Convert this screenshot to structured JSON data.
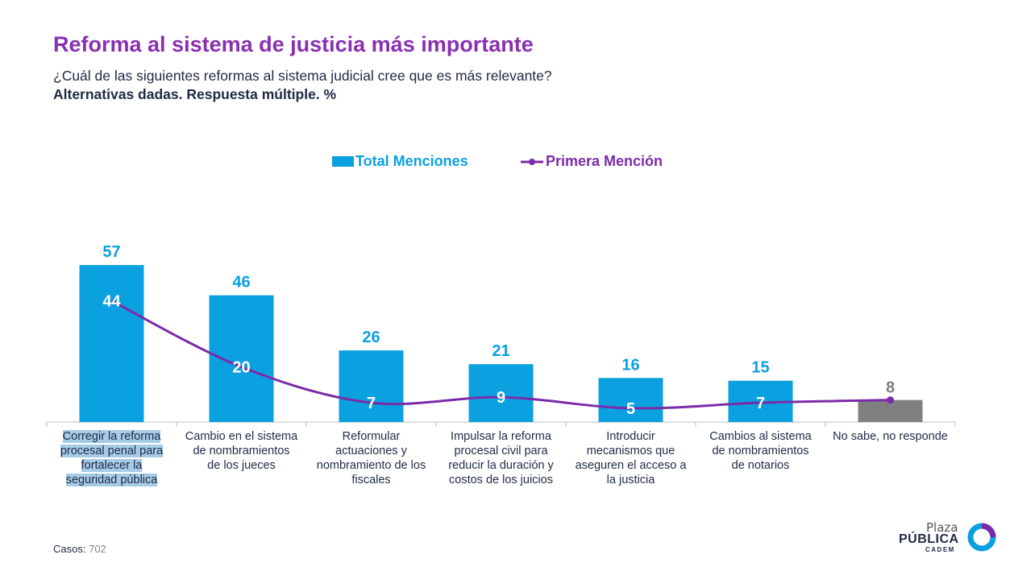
{
  "header": {
    "title": "Reforma al sistema de justicia más importante",
    "subtitle": "¿Cuál de las siguientes reformas al sistema judicial cree que es más relevante?",
    "note": "Alternativas dadas. Respuesta múltiple. %"
  },
  "legend": {
    "bar_label": "Total Menciones",
    "line_label": "Primera Mención"
  },
  "colors": {
    "bar": "#0ba0e0",
    "bar_na": "#808080",
    "line": "#7b2ba8",
    "title": "#8a2fb0",
    "highlight": "#a6cbe6"
  },
  "chart_data": {
    "type": "bar",
    "categories": [
      "Corregir la reforma procesal penal para fortalecer la seguridad pública",
      "Cambio en el sistema de nombramientos de los jueces",
      "Reformular actuaciones y nombramiento de los fiscales",
      "Impulsar la reforma procesal civil para reducir la duración y costos de los juicios",
      "Introducir mecanismos que aseguren el acceso a la justicia",
      "Cambios al sistema de nombramientos de notarios",
      "No sabe, no responde"
    ],
    "series": [
      {
        "name": "Total Menciones",
        "type": "bar",
        "values": [
          57,
          46,
          26,
          21,
          16,
          15,
          8
        ]
      },
      {
        "name": "Primera Mención",
        "type": "line",
        "values": [
          44,
          20,
          7,
          9,
          5,
          7,
          8
        ]
      }
    ],
    "ylim": [
      0,
      60
    ],
    "legend_position": "top-center",
    "grid": false
  },
  "category_lines": [
    [
      "Corregir la reforma",
      "procesal penal para",
      "fortalecer la",
      "seguridad pública"
    ],
    [
      "Cambio en el sistema",
      "de nombramientos",
      "de los jueces"
    ],
    [
      "Reformular",
      "actuaciones y",
      "nombramiento de los",
      "fiscales"
    ],
    [
      "Impulsar la reforma",
      "procesal civil para",
      "reducir la duración y",
      "costos de los juicios"
    ],
    [
      "Introducir",
      "mecanismos que",
      "aseguren el acceso a",
      "la justicia"
    ],
    [
      "Cambios al sistema",
      "de nombramientos",
      "de notarios"
    ],
    [
      "No sabe, no responde"
    ]
  ],
  "footer": {
    "cases_label": "Casos:",
    "cases_value": "702"
  },
  "logo": {
    "line1": "Plaza",
    "line2": "PÚBLICA",
    "line3": "CADEM"
  }
}
